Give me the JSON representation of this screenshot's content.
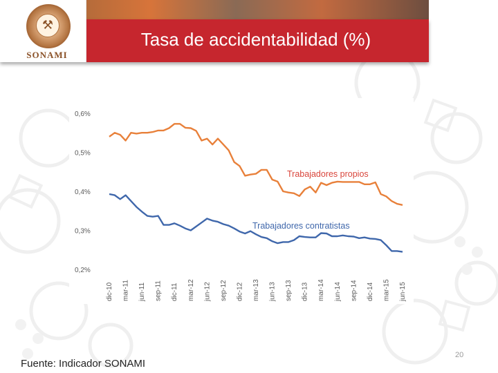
{
  "slide": {
    "title": "Tasa de accidentabilidad (%)",
    "logo_text": "SONAMI",
    "source": "Fuente: Indicador SONAMI",
    "page_number": "20"
  },
  "colors": {
    "header_red": "#c6262e",
    "propios": "#e8803a",
    "contratistas": "#3f67ab",
    "axis_text": "#595959"
  },
  "chart_data": {
    "type": "line",
    "ylim": [
      0.2,
      0.6
    ],
    "yticks": [
      0.6,
      0.5,
      0.4,
      0.3,
      0.2
    ],
    "ytick_labels": [
      "0,6%",
      "0,5%",
      "0,4%",
      "0,3%",
      "0,2%"
    ],
    "xtick_labels": [
      "dic-10",
      "mar-11",
      "jun-11",
      "sep-11",
      "dic-11",
      "mar-12",
      "jun-12",
      "sep-12",
      "dic-12",
      "mar-13",
      "jun-13",
      "sep-13",
      "dic-13",
      "mar-14",
      "jun-14",
      "sep-14",
      "dic-14",
      "mar-15",
      "jun-15"
    ],
    "x": [
      "dic-10",
      "ene-11",
      "feb-11",
      "mar-11",
      "abr-11",
      "may-11",
      "jun-11",
      "jul-11",
      "ago-11",
      "sep-11",
      "oct-11",
      "nov-11",
      "dic-11",
      "ene-12",
      "feb-12",
      "mar-12",
      "abr-12",
      "may-12",
      "jun-12",
      "jul-12",
      "ago-12",
      "sep-12",
      "oct-12",
      "nov-12",
      "dic-12",
      "ene-13",
      "feb-13",
      "mar-13",
      "abr-13",
      "may-13",
      "jun-13",
      "jul-13",
      "ago-13",
      "sep-13",
      "oct-13",
      "nov-13",
      "dic-13",
      "ene-14",
      "feb-14",
      "mar-14",
      "abr-14",
      "may-14",
      "jun-14",
      "jul-14",
      "ago-14",
      "sep-14",
      "oct-14",
      "nov-14",
      "dic-14",
      "ene-15",
      "feb-15",
      "mar-15",
      "abr-15",
      "may-15",
      "jun-15"
    ],
    "series": [
      {
        "name": "Trabajadores propios",
        "values": [
          0.54,
          0.55,
          0.545,
          0.53,
          0.55,
          0.548,
          0.55,
          0.55,
          0.552,
          0.556,
          0.556,
          0.562,
          0.573,
          0.573,
          0.563,
          0.562,
          0.555,
          0.53,
          0.535,
          0.52,
          0.535,
          0.52,
          0.505,
          0.475,
          0.465,
          0.44,
          0.443,
          0.445,
          0.455,
          0.455,
          0.43,
          0.425,
          0.4,
          0.397,
          0.395,
          0.388,
          0.405,
          0.412,
          0.397,
          0.422,
          0.416,
          0.422,
          0.425,
          0.424,
          0.424,
          0.424,
          0.424,
          0.418,
          0.418,
          0.423,
          0.393,
          0.387,
          0.375,
          0.368,
          0.365
        ]
      },
      {
        "name": "Trabajadores contratistas",
        "values": [
          0.393,
          0.39,
          0.38,
          0.39,
          0.375,
          0.36,
          0.348,
          0.337,
          0.335,
          0.337,
          0.314,
          0.314,
          0.318,
          0.312,
          0.305,
          0.3,
          0.31,
          0.32,
          0.33,
          0.325,
          0.322,
          0.316,
          0.312,
          0.305,
          0.297,
          0.292,
          0.298,
          0.29,
          0.283,
          0.28,
          0.272,
          0.267,
          0.27,
          0.27,
          0.275,
          0.285,
          0.283,
          0.282,
          0.282,
          0.293,
          0.292,
          0.285,
          0.285,
          0.287,
          0.285,
          0.284,
          0.28,
          0.282,
          0.279,
          0.278,
          0.275,
          0.262,
          0.247,
          0.247,
          0.245
        ]
      }
    ]
  }
}
